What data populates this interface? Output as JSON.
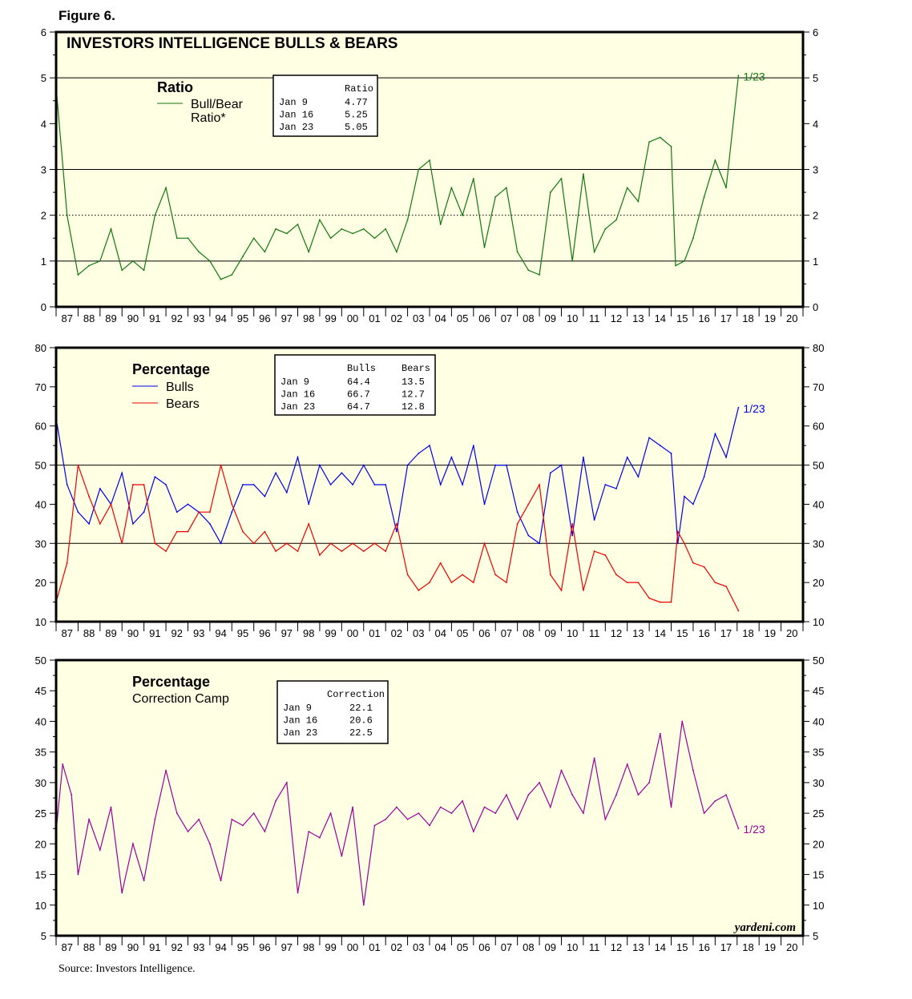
{
  "figure_label": "Figure 6.",
  "source": "Source: Investors Intelligence.",
  "watermark": "yardeni.com",
  "colors": {
    "background": "#ffffe3",
    "ratio": "#117711",
    "bulls": "#0000ee",
    "bears": "#ee0000",
    "correction": "#990099"
  },
  "chart_data": [
    {
      "type": "line",
      "title": "INVESTORS INTELLIGENCE BULLS & BEARS",
      "legend_title": "Ratio",
      "legend": [
        "Bull/Bear",
        "Ratio*"
      ],
      "ylim": [
        0,
        6
      ],
      "yticks": [
        0,
        1,
        2,
        3,
        4,
        5,
        6
      ],
      "xlim": [
        1987,
        2021
      ],
      "xtick_labels": [
        "87",
        "88",
        "89",
        "90",
        "91",
        "92",
        "93",
        "94",
        "95",
        "96",
        "97",
        "98",
        "99",
        "00",
        "01",
        "02",
        "03",
        "04",
        "05",
        "06",
        "07",
        "08",
        "09",
        "10",
        "11",
        "12",
        "13",
        "14",
        "15",
        "16",
        "17",
        "18",
        "19",
        "20"
      ],
      "gridlines": [
        {
          "y": 1,
          "style": "solid"
        },
        {
          "y": 2,
          "style": "dotted"
        },
        {
          "y": 3,
          "style": "solid"
        },
        {
          "y": 5,
          "style": "solid"
        }
      ],
      "end_label": "1/23",
      "table": {
        "header": [
          "",
          "Ratio"
        ],
        "rows": [
          [
            "Jan  9",
            "4.77"
          ],
          [
            "Jan 16",
            "5.25"
          ],
          [
            "Jan 23",
            "5.05"
          ]
        ]
      },
      "series": [
        {
          "name": "Bull/Bear Ratio*",
          "color": "#117711",
          "x": [
            1987.0,
            1987.5,
            1988.0,
            1988.5,
            1989.0,
            1989.5,
            1990.0,
            1990.5,
            1991.0,
            1991.5,
            1992.0,
            1992.5,
            1993.0,
            1993.5,
            1994.0,
            1994.5,
            1995.0,
            1995.5,
            1996.0,
            1996.5,
            1997.0,
            1997.5,
            1998.0,
            1998.5,
            1999.0,
            1999.5,
            2000.0,
            2000.5,
            2001.0,
            2001.5,
            2002.0,
            2002.5,
            2003.0,
            2003.5,
            2004.0,
            2004.5,
            2005.0,
            2005.5,
            2006.0,
            2006.5,
            2007.0,
            2007.5,
            2008.0,
            2008.5,
            2009.0,
            2009.5,
            2010.0,
            2010.5,
            2011.0,
            2011.5,
            2012.0,
            2012.5,
            2013.0,
            2013.5,
            2014.0,
            2014.5,
            2015.0,
            2015.2,
            2015.6,
            2016.0,
            2016.5,
            2017.0,
            2017.5,
            2018.06
          ],
          "values": [
            4.8,
            2.0,
            0.7,
            0.9,
            1.0,
            1.7,
            0.8,
            1.0,
            0.8,
            2.0,
            2.6,
            1.5,
            1.5,
            1.2,
            1.0,
            0.6,
            0.7,
            1.1,
            1.5,
            1.2,
            1.7,
            1.6,
            1.8,
            1.2,
            1.9,
            1.5,
            1.7,
            1.6,
            1.7,
            1.5,
            1.7,
            1.2,
            1.9,
            3.0,
            3.2,
            1.8,
            2.6,
            2.0,
            2.8,
            1.3,
            2.4,
            2.6,
            1.2,
            0.8,
            0.7,
            2.5,
            2.8,
            1.0,
            2.9,
            1.2,
            1.7,
            1.9,
            2.6,
            2.3,
            3.6,
            3.7,
            3.5,
            0.9,
            1.0,
            1.5,
            2.4,
            3.2,
            2.6,
            5.05
          ]
        }
      ]
    },
    {
      "type": "line",
      "legend_title": "Percentage",
      "legend": [
        "Bulls",
        "Bears"
      ],
      "ylim": [
        10,
        80
      ],
      "yticks": [
        10,
        20,
        30,
        40,
        50,
        60,
        70,
        80
      ],
      "xlim": [
        1987,
        2021
      ],
      "gridlines": [
        {
          "y": 30,
          "style": "solid"
        },
        {
          "y": 50,
          "style": "solid"
        }
      ],
      "end_label": "1/23",
      "table": {
        "header": [
          "",
          "Bulls",
          "Bears"
        ],
        "rows": [
          [
            "Jan  9",
            "64.4",
            "13.5"
          ],
          [
            "Jan 16",
            "66.7",
            "12.7"
          ],
          [
            "Jan 23",
            "64.7",
            "12.8"
          ]
        ]
      },
      "x": [
        1987.0,
        1987.5,
        1988.0,
        1988.5,
        1989.0,
        1989.5,
        1990.0,
        1990.5,
        1991.0,
        1991.5,
        1992.0,
        1992.5,
        1993.0,
        1993.5,
        1994.0,
        1994.5,
        1995.0,
        1995.5,
        1996.0,
        1996.5,
        1997.0,
        1997.5,
        1998.0,
        1998.5,
        1999.0,
        1999.5,
        2000.0,
        2000.5,
        2001.0,
        2001.5,
        2002.0,
        2002.5,
        2003.0,
        2003.5,
        2004.0,
        2004.5,
        2005.0,
        2005.5,
        2006.0,
        2006.5,
        2007.0,
        2007.5,
        2008.0,
        2008.5,
        2009.0,
        2009.5,
        2010.0,
        2010.5,
        2011.0,
        2011.5,
        2012.0,
        2012.5,
        2013.0,
        2013.5,
        2014.0,
        2014.5,
        2015.0,
        2015.3,
        2015.6,
        2016.0,
        2016.5,
        2017.0,
        2017.5,
        2018.06
      ],
      "series": [
        {
          "name": "Bulls",
          "color": "#0000ee",
          "values": [
            62,
            45,
            38,
            35,
            44,
            40,
            48,
            35,
            38,
            47,
            45,
            38,
            40,
            38,
            35,
            30,
            38,
            45,
            45,
            42,
            48,
            43,
            52,
            40,
            50,
            45,
            48,
            45,
            50,
            45,
            45,
            33,
            50,
            53,
            55,
            45,
            52,
            45,
            55,
            40,
            50,
            50,
            38,
            32,
            30,
            48,
            50,
            32,
            52,
            36,
            45,
            44,
            52,
            47,
            57,
            55,
            53,
            30,
            42,
            40,
            47,
            58,
            52,
            64.7
          ]
        },
        {
          "name": "Bears",
          "color": "#ee0000",
          "values": [
            15,
            25,
            50,
            42,
            35,
            40,
            30,
            45,
            45,
            30,
            28,
            33,
            33,
            38,
            38,
            50,
            40,
            33,
            30,
            33,
            28,
            30,
            28,
            35,
            27,
            30,
            28,
            30,
            28,
            30,
            28,
            35,
            22,
            18,
            20,
            25,
            20,
            22,
            20,
            30,
            22,
            20,
            35,
            40,
            45,
            22,
            18,
            35,
            18,
            28,
            27,
            22,
            20,
            20,
            16,
            15,
            15,
            33,
            30,
            25,
            24,
            20,
            19,
            12.8
          ]
        }
      ]
    },
    {
      "type": "line",
      "legend_title": "Percentage",
      "legend": [
        "Correction Camp"
      ],
      "ylim": [
        5,
        50
      ],
      "yticks": [
        5,
        10,
        15,
        20,
        25,
        30,
        35,
        40,
        45,
        50
      ],
      "xlim": [
        1987,
        2021
      ],
      "end_label": "1/23",
      "table": {
        "header": [
          "",
          "Correction"
        ],
        "rows": [
          [
            "Jan  9",
            "22.1"
          ],
          [
            "Jan 16",
            "20.6"
          ],
          [
            "Jan 23",
            "22.5"
          ]
        ]
      },
      "series": [
        {
          "name": "Correction Camp",
          "color": "#990099",
          "x": [
            1987.0,
            1987.3,
            1987.7,
            1988.0,
            1988.5,
            1989.0,
            1989.5,
            1990.0,
            1990.5,
            1991.0,
            1991.5,
            1992.0,
            1992.5,
            1993.0,
            1993.5,
            1994.0,
            1994.5,
            1995.0,
            1995.5,
            1996.0,
            1996.5,
            1997.0,
            1997.5,
            1998.0,
            1998.5,
            1999.0,
            1999.5,
            2000.0,
            2000.5,
            2001.0,
            2001.5,
            2002.0,
            2002.5,
            2003.0,
            2003.5,
            2004.0,
            2004.5,
            2005.0,
            2005.5,
            2006.0,
            2006.5,
            2007.0,
            2007.5,
            2008.0,
            2008.5,
            2009.0,
            2009.5,
            2010.0,
            2010.5,
            2011.0,
            2011.5,
            2012.0,
            2012.5,
            2013.0,
            2013.5,
            2014.0,
            2014.5,
            2015.0,
            2015.5,
            2016.0,
            2016.5,
            2017.0,
            2017.5,
            2018.06
          ],
          "values": [
            22,
            33,
            28,
            15,
            24,
            19,
            26,
            12,
            20,
            14,
            24,
            32,
            25,
            22,
            24,
            20,
            14,
            24,
            23,
            25,
            22,
            27,
            30,
            12,
            22,
            21,
            25,
            18,
            26,
            10,
            23,
            24,
            26,
            24,
            25,
            23,
            26,
            25,
            27,
            22,
            26,
            25,
            28,
            24,
            28,
            30,
            26,
            32,
            28,
            25,
            34,
            24,
            28,
            33,
            28,
            30,
            38,
            26,
            40,
            32,
            25,
            27,
            28,
            22.5
          ]
        }
      ]
    }
  ]
}
